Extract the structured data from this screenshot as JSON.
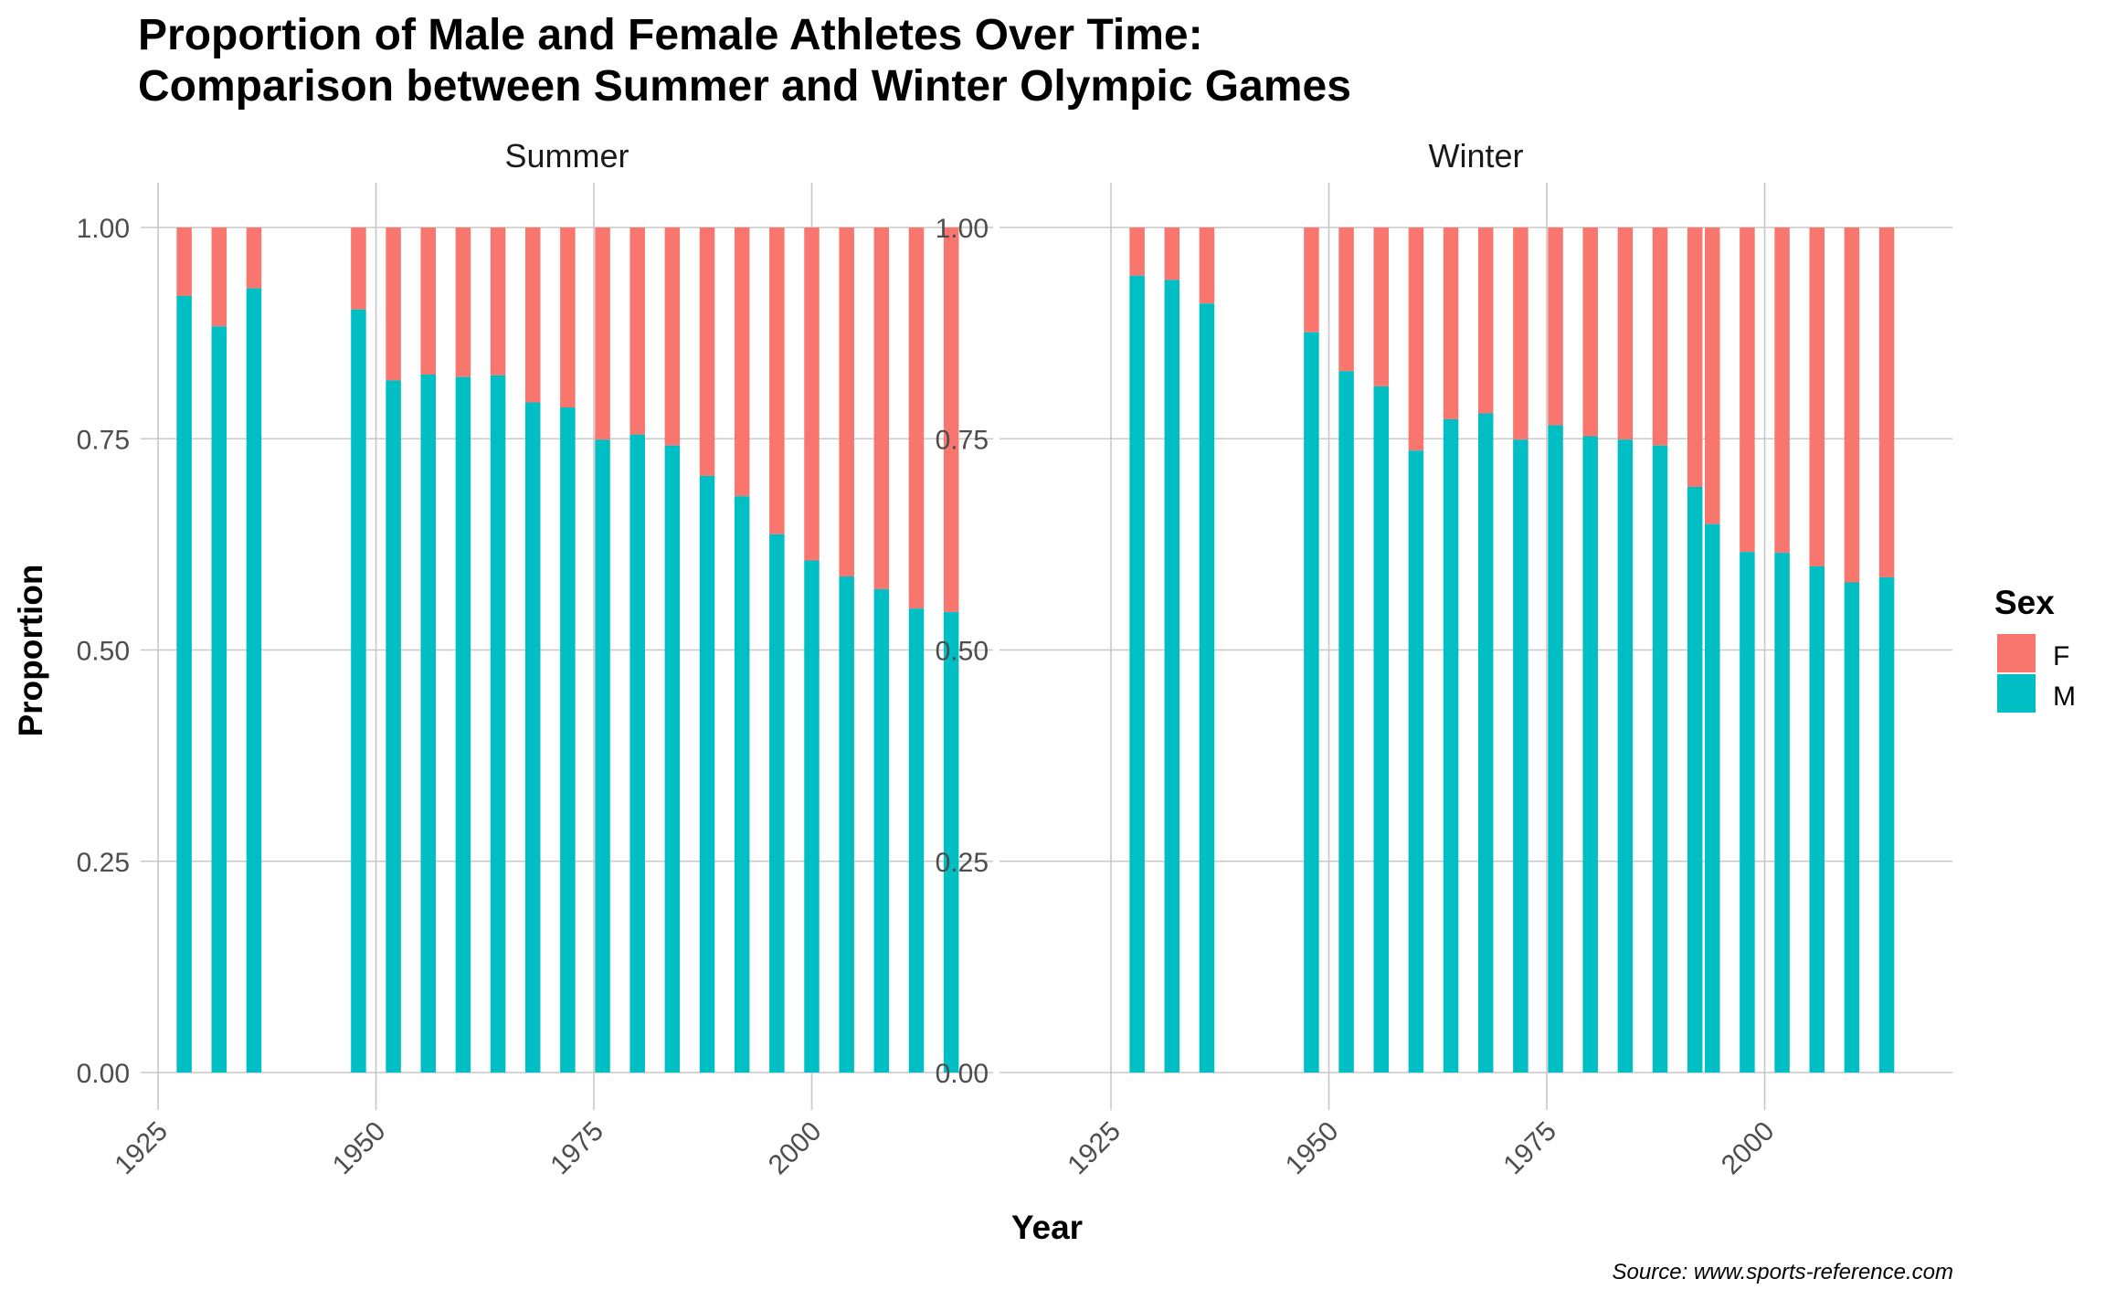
{
  "chart_data": {
    "type": "bar",
    "stacked": true,
    "position": "fill",
    "title": "Proportion of Male and Female Athletes Over Time:",
    "subtitle": "Comparison between Summer and Winter Olympic Games",
    "xlabel": "Year",
    "ylabel": "Proportion",
    "caption": "Source: www.sports-reference.com",
    "ylim": [
      0,
      1
    ],
    "xlim": [
      1925,
      2020
    ],
    "y_ticks": [
      "0.00",
      "0.25",
      "0.50",
      "0.75",
      "1.00"
    ],
    "x_ticks": [
      "1925",
      "1950",
      "1975",
      "2000"
    ],
    "grid": true,
    "legend": {
      "title": "Sex",
      "placement": "right",
      "entries": [
        {
          "label": "F",
          "color": "#F8766D"
        },
        {
          "label": "M",
          "color": "#00BFC4"
        }
      ]
    },
    "panels": [
      {
        "name": "Summer",
        "years": [
          1928,
          1932,
          1936,
          1948,
          1952,
          1956,
          1960,
          1964,
          1968,
          1972,
          1976,
          1980,
          1984,
          1988,
          1992,
          1996,
          2000,
          2004,
          2008,
          2012,
          2016
        ],
        "series": [
          {
            "name": "M",
            "values": [
              0.919,
              0.883,
              0.928,
              0.903,
              0.819,
              0.826,
              0.823,
              0.825,
              0.793,
              0.787,
              0.749,
              0.755,
              0.742,
              0.706,
              0.682,
              0.637,
              0.606,
              0.587,
              0.572,
              0.549,
              0.545
            ]
          },
          {
            "name": "F",
            "values": [
              0.081,
              0.117,
              0.072,
              0.097,
              0.181,
              0.174,
              0.177,
              0.175,
              0.207,
              0.213,
              0.251,
              0.245,
              0.258,
              0.294,
              0.318,
              0.363,
              0.394,
              0.413,
              0.428,
              0.451,
              0.455
            ]
          }
        ]
      },
      {
        "name": "Winter",
        "years": [
          1928,
          1932,
          1936,
          1948,
          1952,
          1956,
          1960,
          1964,
          1968,
          1972,
          1976,
          1980,
          1984,
          1988,
          1992,
          1994,
          1998,
          2002,
          2006,
          2010,
          2014
        ],
        "series": [
          {
            "name": "M",
            "values": [
              0.943,
              0.938,
              0.91,
              0.876,
              0.83,
              0.812,
              0.736,
              0.773,
              0.78,
              0.749,
              0.766,
              0.753,
              0.749,
              0.742,
              0.693,
              0.649,
              0.616,
              0.615,
              0.599,
              0.58,
              0.586
            ]
          },
          {
            "name": "F",
            "values": [
              0.057,
              0.062,
              0.09,
              0.124,
              0.17,
              0.188,
              0.264,
              0.227,
              0.22,
              0.251,
              0.234,
              0.247,
              0.251,
              0.258,
              0.307,
              0.351,
              0.384,
              0.385,
              0.401,
              0.42,
              0.414
            ]
          }
        ]
      }
    ]
  }
}
